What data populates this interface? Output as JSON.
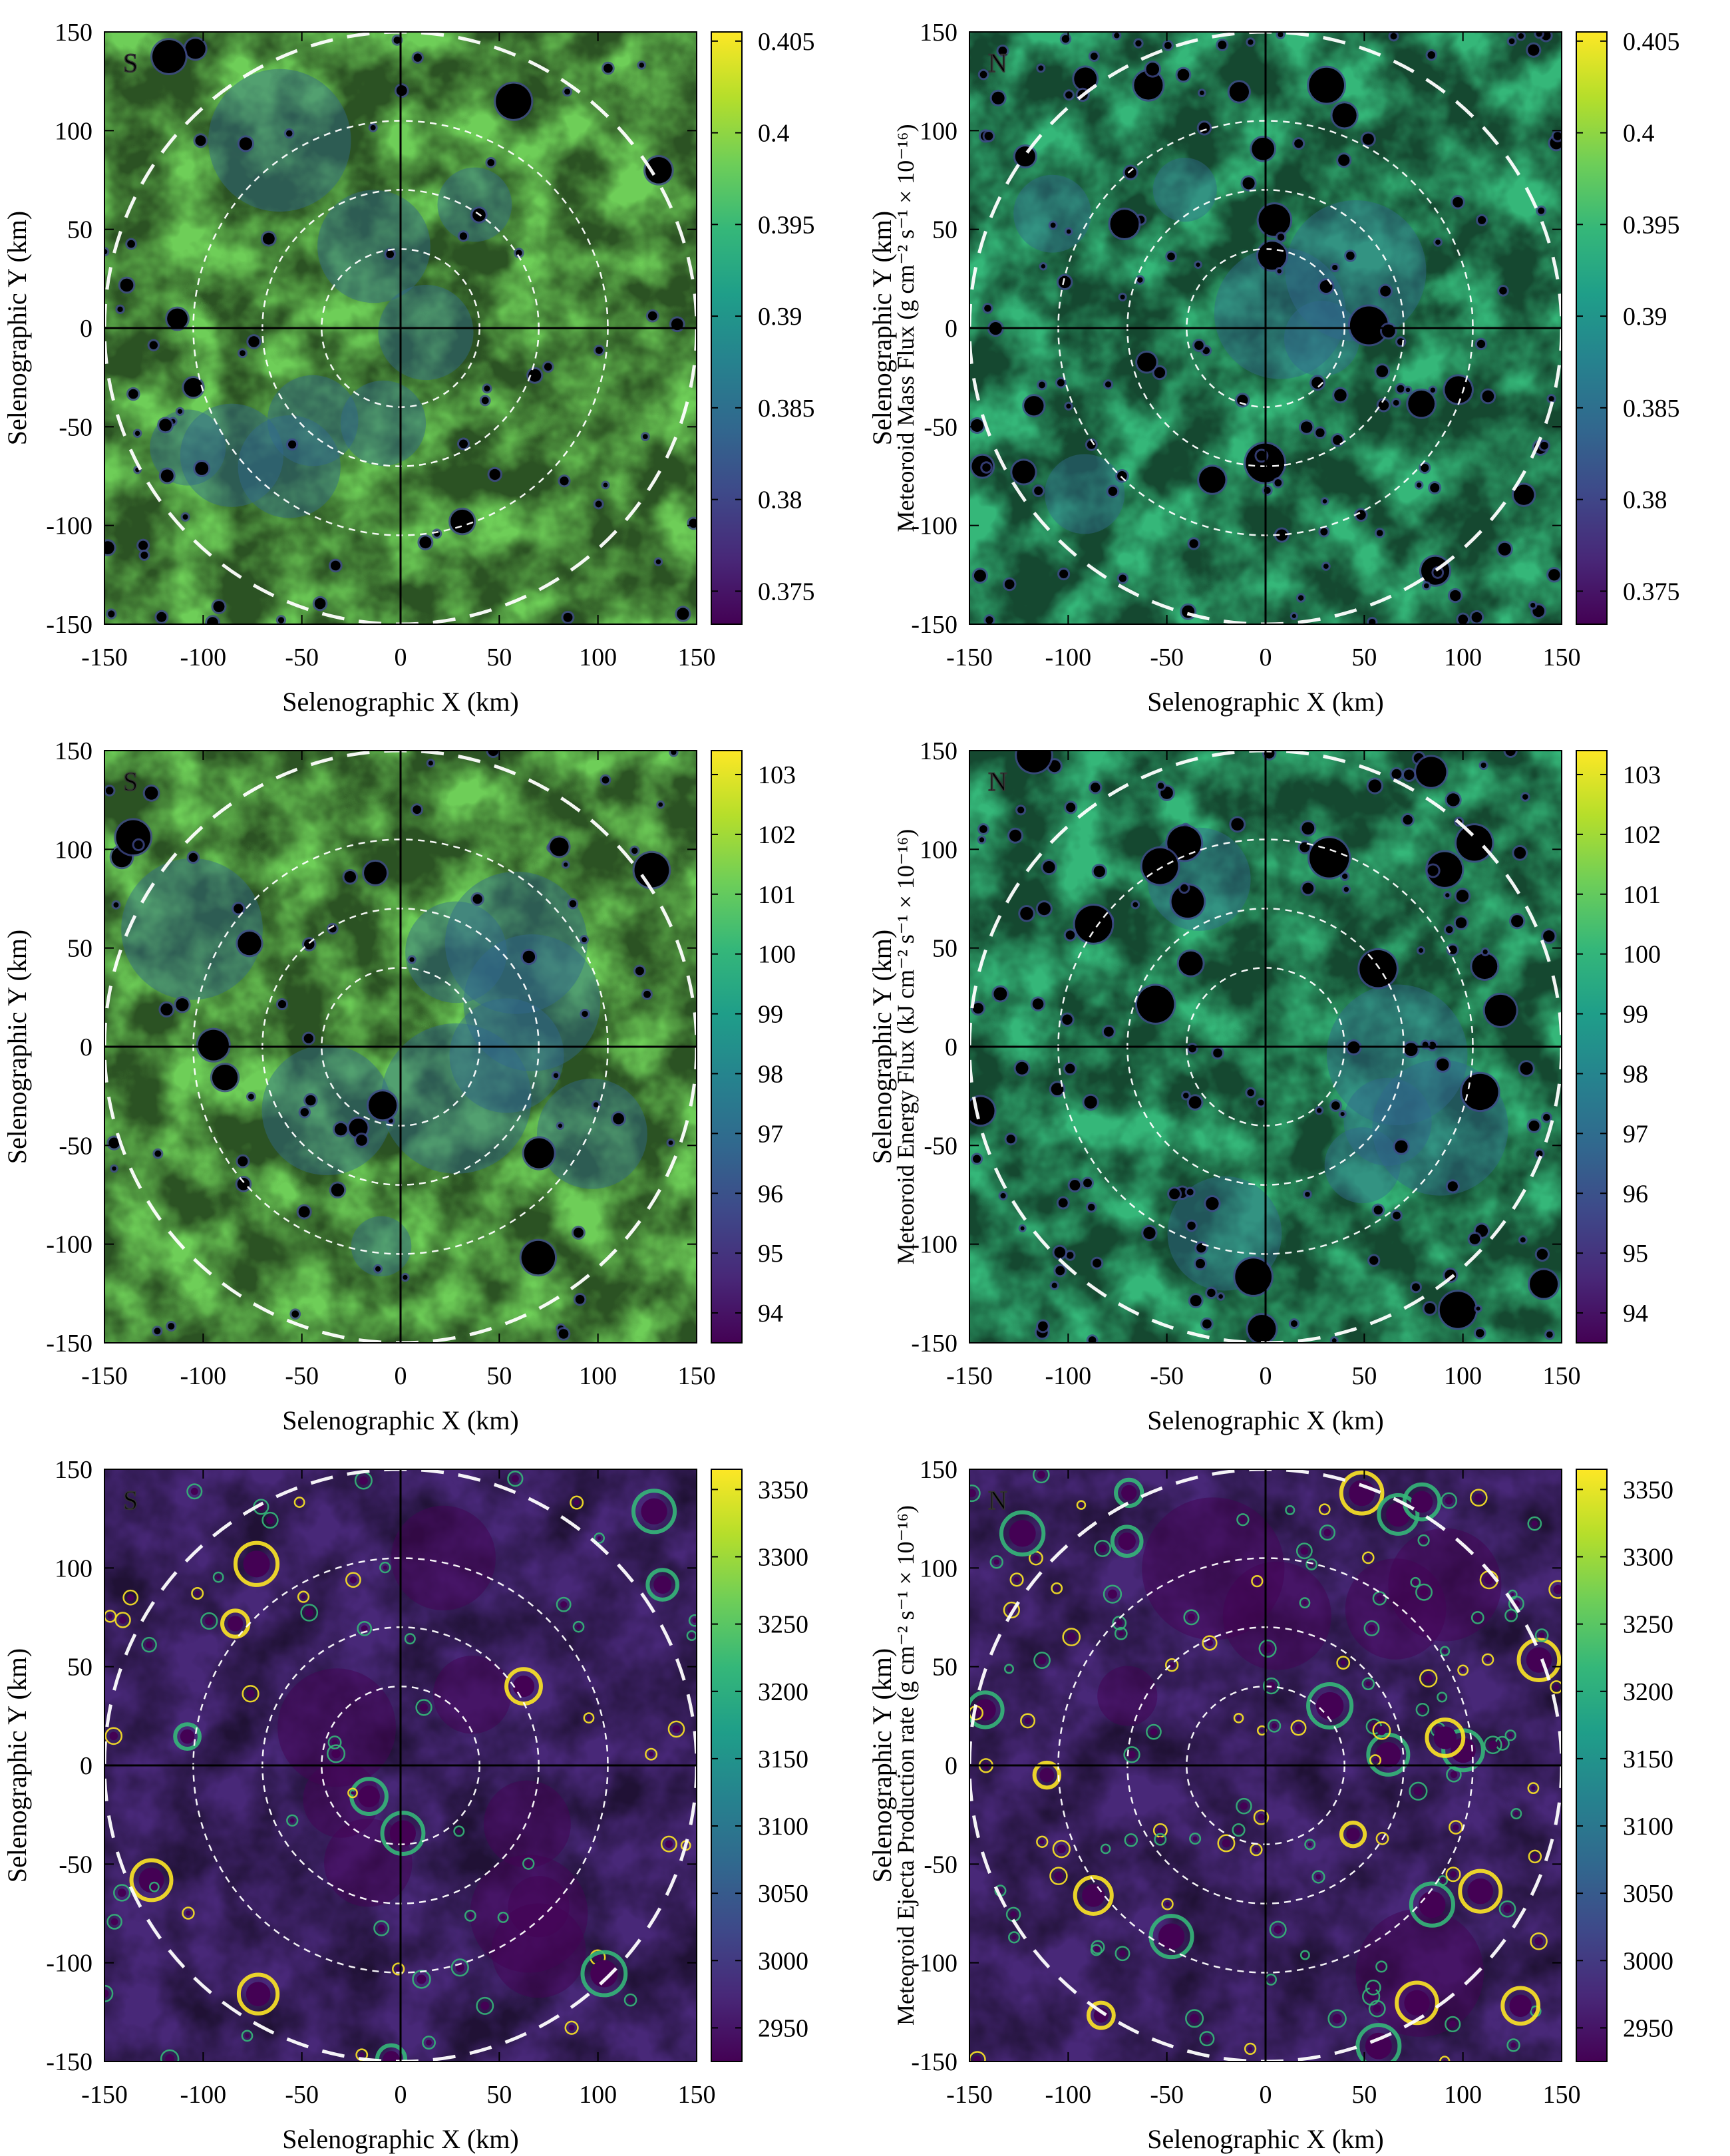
{
  "chart_data": [
    {
      "type": "heatmap",
      "hemisphere_label": "S",
      "xlabel": "Selenographic X (km)",
      "ylabel": "Selenographic Y (km)",
      "xlim": [
        -150,
        150
      ],
      "ylim": [
        -150,
        150
      ],
      "xticks": [
        -150,
        -100,
        -50,
        0,
        50,
        100,
        150
      ],
      "yticks": [
        -150,
        -100,
        -50,
        0,
        50,
        100,
        150
      ],
      "colorbar": {
        "label": "Meteoroid Mass Flux (g cm⁻² s⁻¹ × 10⁻¹⁶)",
        "range": [
          0.3732,
          0.4055
        ],
        "ticks": [
          "0.405",
          "0.4",
          "0.395",
          "0.39",
          "0.385",
          "0.38",
          "0.375"
        ],
        "colormap": "viridis"
      }
    },
    {
      "type": "heatmap",
      "hemisphere_label": "N",
      "xlabel": "Selenographic X (km)",
      "ylabel": "Selenographic Y (km)",
      "xlim": [
        -150,
        150
      ],
      "ylim": [
        -150,
        150
      ],
      "xticks": [
        -150,
        -100,
        -50,
        0,
        50,
        100,
        150
      ],
      "yticks": [
        -150,
        -100,
        -50,
        0,
        50,
        100,
        150
      ],
      "colorbar": {
        "label": "Meteoroid Mass Flux (g cm⁻² s⁻¹ × 10⁻¹⁶)",
        "range": [
          0.3732,
          0.4055
        ],
        "ticks": [
          "0.405",
          "0.4",
          "0.395",
          "0.39",
          "0.385",
          "0.38",
          "0.375"
        ],
        "colormap": "viridis"
      }
    },
    {
      "type": "heatmap",
      "hemisphere_label": "S",
      "xlabel": "Selenographic X (km)",
      "ylabel": "Selenographic Y (km)",
      "xlim": [
        -150,
        150
      ],
      "ylim": [
        -150,
        150
      ],
      "xticks": [
        -150,
        -100,
        -50,
        0,
        50,
        100,
        150
      ],
      "yticks": [
        -150,
        -100,
        -50,
        0,
        50,
        100,
        150
      ],
      "colorbar": {
        "label": "Meteoroid Energy Flux  (kJ cm⁻² s⁻¹ × 10⁻¹⁶)",
        "range": [
          93.5,
          103.4
        ],
        "ticks": [
          "103",
          "102",
          "101",
          "100",
          "99",
          "98",
          "97",
          "96",
          "95",
          "94"
        ],
        "colormap": "viridis"
      }
    },
    {
      "type": "heatmap",
      "hemisphere_label": "N",
      "xlabel": "Selenographic X (km)",
      "ylabel": "Selenographic Y (km)",
      "xlim": [
        -150,
        150
      ],
      "ylim": [
        -150,
        150
      ],
      "xticks": [
        -150,
        -100,
        -50,
        0,
        50,
        100,
        150
      ],
      "yticks": [
        -150,
        -100,
        -50,
        0,
        50,
        100,
        150
      ],
      "colorbar": {
        "label": "Meteoroid Energy Flux  (kJ cm⁻² s⁻¹ × 10⁻¹⁶)",
        "range": [
          93.5,
          103.4
        ],
        "ticks": [
          "103",
          "102",
          "101",
          "100",
          "99",
          "98",
          "97",
          "96",
          "95",
          "94"
        ],
        "colormap": "viridis"
      }
    },
    {
      "type": "heatmap",
      "hemisphere_label": "S",
      "xlabel": "Selenographic X (km)",
      "ylabel": "Selenographic Y (km)",
      "xlim": [
        -150,
        150
      ],
      "ylim": [
        -150,
        150
      ],
      "xticks": [
        -150,
        -100,
        -50,
        0,
        50,
        100,
        150
      ],
      "yticks": [
        -150,
        -100,
        -50,
        0,
        50,
        100,
        150
      ],
      "colorbar": {
        "label": "Meteoroid Ejecta Production rate (g cm⁻² s⁻¹ × 10⁻¹⁶)",
        "range": [
          2925,
          3365
        ],
        "ticks": [
          "3350",
          "3300",
          "3250",
          "3200",
          "3150",
          "3100",
          "3050",
          "3000",
          "2950"
        ],
        "colormap": "viridis"
      }
    },
    {
      "type": "heatmap",
      "hemisphere_label": "N",
      "xlabel": "Selenographic X (km)",
      "ylabel": "Selenographic Y (km)",
      "xlim": [
        -150,
        150
      ],
      "ylim": [
        -150,
        150
      ],
      "xticks": [
        -150,
        -100,
        -50,
        0,
        50,
        100,
        150
      ],
      "yticks": [
        -150,
        -100,
        -50,
        0,
        50,
        100,
        150
      ],
      "colorbar": {
        "label": "Meteoroid Ejecta Production rate (g cm⁻² s⁻¹ × 10⁻¹⁶)",
        "range": [
          2925,
          3365
        ],
        "ticks": [
          "3350",
          "3300",
          "3250",
          "3200",
          "3150",
          "3100",
          "3050",
          "3000",
          "2950"
        ],
        "colormap": "viridis"
      }
    }
  ],
  "colors": {
    "viridis_stops": [
      "#440154",
      "#482878",
      "#3e4989",
      "#31688e",
      "#26828e",
      "#1f9e89",
      "#35b779",
      "#6ece58",
      "#b5de2b",
      "#fde725"
    ],
    "axis": "#000000",
    "guide": "#ffffff"
  }
}
